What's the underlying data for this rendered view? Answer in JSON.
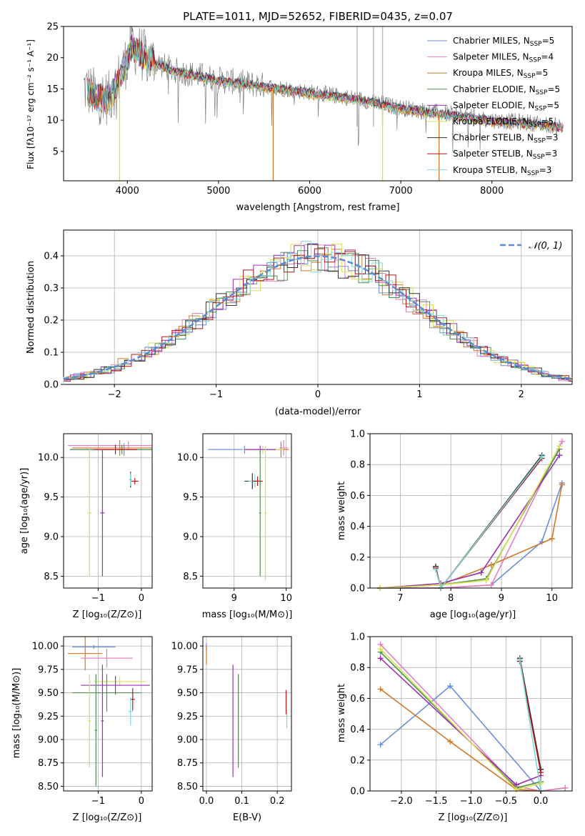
{
  "chart_data": [
    {
      "id": "spectrum",
      "type": "line",
      "title": "PLATE=1011, MJD=52652, FIBERID=0435, z=0.07",
      "xlabel": "wavelength [Angstrom, rest frame]",
      "ylabel": "Flux [fλ10⁻¹⁷ erg cm⁻² s⁻¹ A⁻¹]",
      "xlim": [
        3300,
        8880
      ],
      "ylim": [
        0.3,
        25
      ],
      "xticks": [
        4000,
        5000,
        6000,
        7000,
        8000
      ],
      "yticks": [
        5,
        10,
        15,
        20,
        25
      ],
      "legend_position": "upper-right",
      "legend": [
        {
          "label": "Chabrier MILES, N",
          "sub": "SSP",
          "tail": "=5",
          "color": "#6a8fd8"
        },
        {
          "label": "Salpeter MILES, N",
          "sub": "SSP",
          "tail": "=4",
          "color": "#e87fbf"
        },
        {
          "label": "Kroupa MILES, N",
          "sub": "SSP",
          "tail": "=5",
          "color": "#d4782a"
        },
        {
          "label": "Chabrier ELODIE, N",
          "sub": "SSP",
          "tail": "=5",
          "color": "#4f8f55"
        },
        {
          "label": "Salpeter ELODIE, N",
          "sub": "SSP",
          "tail": "=5",
          "color": "#9b30b0"
        },
        {
          "label": "Kroupa ELODIE, N",
          "sub": "SSP",
          "tail": "=5",
          "color": "#d8e050"
        },
        {
          "label": "Chabrier STELIB, N",
          "sub": "SSP",
          "tail": "=3",
          "color": "#333333"
        },
        {
          "label": "Salpeter STELIB, N",
          "sub": "SSP",
          "tail": "=3",
          "color": "#b01818"
        },
        {
          "label": "Kroupa STELIB, N",
          "sub": "SSP",
          "tail": "=3",
          "color": "#7fd8d8"
        }
      ],
      "continuum": {
        "x": [
          3500,
          3650,
          3800,
          3950,
          4050,
          4200,
          4500,
          5000,
          5500,
          6000,
          6500,
          7000,
          7500,
          8000,
          8500,
          8750
        ],
        "y": [
          15.5,
          14,
          13.5,
          18,
          22,
          20,
          18,
          16.5,
          15.5,
          14.5,
          13.5,
          12,
          11,
          10,
          9.5,
          9
        ]
      }
    },
    {
      "id": "residuals",
      "type": "step",
      "xlabel": "(data-model)/error",
      "ylabel": "Normed distribution",
      "xlim": [
        -2.5,
        2.5
      ],
      "ylim": [
        0,
        0.48
      ],
      "xticks": [
        -2,
        -1,
        0,
        1,
        2
      ],
      "yticks": [
        0.0,
        0.1,
        0.2,
        0.3,
        0.4
      ],
      "legend": {
        "label": "𝒩(0, 1)"
      },
      "reference_curve": "normal(0,1)"
    },
    {
      "id": "age_vs_Z",
      "type": "errorbar",
      "xlabel": "Z [log₁₀(Z/Z⊙)]",
      "ylabel": "age  [log₁₀(age/yr)]",
      "xlim": [
        -1.8,
        0.25
      ],
      "ylim": [
        8.35,
        10.3
      ],
      "xticks": [
        -1,
        0
      ],
      "yticks": [
        8.5,
        9.0,
        9.5,
        10.0
      ],
      "points": [
        {
          "x": -0.3,
          "y": 10.15,
          "xerr": 1.4,
          "yerr": 0.05,
          "color": "#e87fbf"
        },
        {
          "x": -0.5,
          "y": 10.12,
          "xerr": 1.1,
          "yerr": 0.1,
          "color": "#d4782a"
        },
        {
          "x": -0.4,
          "y": 10.1,
          "xerr": 1.25,
          "yerr": 0.08,
          "color": "#6a8fd8"
        },
        {
          "x": -0.45,
          "y": 10.1,
          "xerr": 1.2,
          "yerr": 0.06,
          "color": "#4f8f55"
        },
        {
          "x": -0.6,
          "y": 10.1,
          "xerr": 0.5,
          "yerr": 0.06,
          "color": "#b01818"
        },
        {
          "x": -1.2,
          "y": 9.3,
          "xerr": 0.05,
          "yerr": 0.8,
          "color": "#d8e050"
        },
        {
          "x": -0.9,
          "y": 9.3,
          "xerr": 0.05,
          "yerr": 0.8,
          "color": "#9b30b0"
        },
        {
          "x": -0.25,
          "y": 9.72,
          "xerr": 0.03,
          "yerr": 0.1,
          "color": "#333333"
        },
        {
          "x": -0.25,
          "y": 9.72,
          "xerr": 0.03,
          "yerr": 0.08,
          "color": "#7fd8d8"
        },
        {
          "x": -0.15,
          "y": 9.7,
          "xerr": 0.08,
          "yerr": 0.04,
          "color": "#b01818"
        }
      ]
    },
    {
      "id": "age_vs_mass",
      "type": "errorbar",
      "xlabel": "mass [log₁₀(M/M⊙)]",
      "xlim": [
        8.4,
        10.1
      ],
      "ylim": [
        8.35,
        10.3
      ],
      "xticks": [
        9,
        10
      ],
      "yticks": [
        8.5,
        9.0,
        9.5,
        10.0
      ],
      "points": [
        {
          "x": 9.95,
          "y": 10.12,
          "xerr": 0.08,
          "yerr": 0.1,
          "color": "#e87fbf"
        },
        {
          "x": 9.9,
          "y": 10.1,
          "xerr": 0.15,
          "yerr": 0.1,
          "color": "#d4782a"
        },
        {
          "x": 9.2,
          "y": 10.1,
          "xerr": 0.7,
          "yerr": 0.05,
          "color": "#6a8fd8"
        },
        {
          "x": 9.55,
          "y": 10.1,
          "xerr": 0.4,
          "yerr": 0.05,
          "color": "#d8e050"
        },
        {
          "x": 9.5,
          "y": 10.1,
          "xerr": 0.3,
          "yerr": 0.05,
          "color": "#9b30b0"
        },
        {
          "x": 9.6,
          "y": 9.3,
          "xerr": 0.02,
          "yerr": 0.85,
          "color": "#d8e050"
        },
        {
          "x": 9.5,
          "y": 9.3,
          "xerr": 0.02,
          "yerr": 0.8,
          "color": "#4f8f55"
        },
        {
          "x": 9.35,
          "y": 9.7,
          "xerr": 0.15,
          "yerr": 0.1,
          "color": "#333333"
        },
        {
          "x": 9.4,
          "y": 9.7,
          "xerr": 0.12,
          "yerr": 0.08,
          "color": "#7fd8d8"
        },
        {
          "x": 9.45,
          "y": 9.7,
          "xerr": 0.1,
          "yerr": 0.06,
          "color": "#b01818"
        }
      ]
    },
    {
      "id": "massweight_vs_age",
      "type": "line",
      "xlabel": "age  [log₁₀(age/yr)]",
      "ylabel": "mass weight",
      "xlim": [
        6.4,
        10.4
      ],
      "ylim": [
        0,
        1
      ],
      "xticks": [
        7,
        8,
        9,
        10
      ],
      "yticks": [
        0.0,
        0.2,
        0.4,
        0.6,
        0.8,
        1.0
      ],
      "series": [
        {
          "color": "#6a8fd8",
          "x": [
            6.6,
            7.8,
            8.8,
            9.8,
            10.2
          ],
          "y": [
            0.0,
            0.0,
            0.02,
            0.3,
            0.68
          ]
        },
        {
          "color": "#e87fbf",
          "x": [
            6.6,
            7.8,
            8.8,
            10.2
          ],
          "y": [
            0.0,
            0.0,
            0.02,
            0.95
          ]
        },
        {
          "color": "#d4782a",
          "x": [
            6.6,
            7.8,
            8.8,
            10.0,
            10.2
          ],
          "y": [
            0.0,
            0.02,
            0.15,
            0.32,
            0.67
          ]
        },
        {
          "color": "#4f8f55",
          "x": [
            6.6,
            7.8,
            8.7,
            10.15
          ],
          "y": [
            0.0,
            0.02,
            0.06,
            0.9
          ]
        },
        {
          "color": "#9b30b0",
          "x": [
            6.6,
            7.8,
            8.6,
            10.15
          ],
          "y": [
            0.0,
            0.03,
            0.1,
            0.86
          ]
        },
        {
          "color": "#d8e050",
          "x": [
            6.6,
            7.8,
            8.7,
            10.15
          ],
          "y": [
            0.0,
            0.02,
            0.05,
            0.92
          ]
        },
        {
          "color": "#333333",
          "x": [
            7.7,
            7.8,
            9.8
          ],
          "y": [
            0.14,
            0.0,
            0.86
          ]
        },
        {
          "color": "#b01818",
          "x": [
            7.7,
            7.8,
            9.8
          ],
          "y": [
            0.13,
            0.0,
            0.84
          ]
        },
        {
          "color": "#7fd8d8",
          "x": [
            7.7,
            7.8,
            9.8
          ],
          "y": [
            0.12,
            0.0,
            0.85
          ]
        }
      ]
    },
    {
      "id": "mass_vs_Z",
      "type": "errorbar",
      "xlabel": "Z [log₁₀(Z/Z⊙)]",
      "ylabel": "mass [log₁₀(M/M⊙)]",
      "xlim": [
        -1.8,
        0.25
      ],
      "ylim": [
        8.45,
        10.1
      ],
      "xticks": [
        -1,
        0
      ],
      "yticks": [
        8.5,
        8.75,
        9.0,
        9.25,
        9.5,
        9.75,
        10.0
      ],
      "points": [
        {
          "x": -1.1,
          "y": 9.99,
          "xerr": 0.5,
          "yerr": 0.02,
          "color": "#6a8fd8"
        },
        {
          "x": -1.3,
          "y": 9.92,
          "xerr": 0.4,
          "yerr": 0.18,
          "color": "#d4782a"
        },
        {
          "x": -0.8,
          "y": 9.87,
          "xerr": 0.6,
          "yerr": 0.1,
          "color": "#e87fbf"
        },
        {
          "x": -0.5,
          "y": 9.62,
          "xerr": 0.6,
          "yerr": 0.05,
          "color": "#d8e050"
        },
        {
          "x": -0.6,
          "y": 9.58,
          "xerr": 0.8,
          "yerr": 0.1,
          "color": "#9b30b0"
        },
        {
          "x": -0.8,
          "y": 9.5,
          "xerr": 0.8,
          "yerr": 0.2,
          "color": "#4f8f55"
        },
        {
          "x": -1.2,
          "y": 9.2,
          "xerr": 0.03,
          "yerr": 0.5,
          "color": "#d8e050"
        },
        {
          "x": -0.9,
          "y": 9.2,
          "xerr": 0.03,
          "yerr": 0.6,
          "color": "#9b30b0"
        },
        {
          "x": -1.05,
          "y": 9.1,
          "xerr": 0.03,
          "yerr": 0.6,
          "color": "#4f8f55"
        },
        {
          "x": -0.2,
          "y": 9.43,
          "xerr": 0.05,
          "yerr": 0.12,
          "color": "#b01818"
        },
        {
          "x": -0.25,
          "y": 9.3,
          "xerr": 0.05,
          "yerr": 0.15,
          "color": "#7fd8d8"
        }
      ]
    },
    {
      "id": "mass_vs_EBV",
      "type": "errorbar",
      "xlabel": "E(B-V)",
      "xlim": [
        -0.01,
        0.24
      ],
      "ylim": [
        8.45,
        10.1
      ],
      "xticks": [
        0.0,
        0.1,
        0.2
      ],
      "yticks": [
        8.5,
        8.75,
        9.0,
        9.25,
        9.5,
        9.75,
        10.0
      ],
      "points": [
        {
          "x": 0.0,
          "y": 9.99,
          "xerr": 0.0,
          "yerr": 0.04,
          "color": "#6a8fd8"
        },
        {
          "x": 0.0,
          "y": 9.9,
          "xerr": 0.0,
          "yerr": 0.1,
          "color": "#d4782a"
        },
        {
          "x": 0.075,
          "y": 9.2,
          "xerr": 0.0,
          "yerr": 0.6,
          "color": "#9b30b0"
        },
        {
          "x": 0.09,
          "y": 9.25,
          "xerr": 0.0,
          "yerr": 0.45,
          "color": "#d8e050"
        },
        {
          "x": 0.09,
          "y": 9.2,
          "xerr": 0.0,
          "yerr": 0.5,
          "color": "#4f8f55"
        },
        {
          "x": 0.225,
          "y": 9.4,
          "xerr": 0.0,
          "yerr": 0.13,
          "color": "#b01818"
        },
        {
          "x": 0.227,
          "y": 9.22,
          "xerr": 0.0,
          "yerr": 0.1,
          "color": "#7fd8d8"
        }
      ]
    },
    {
      "id": "massweight_vs_Z",
      "type": "line",
      "xlabel": "Z [log₁₀(Z/Z⊙)]",
      "ylabel": "mass weight",
      "xlim": [
        -2.45,
        0.45
      ],
      "ylim": [
        0,
        1
      ],
      "xticks": [
        -2.0,
        -1.5,
        -1.0,
        -0.5,
        0.0
      ],
      "yticks": [
        0.0,
        0.2,
        0.4,
        0.6,
        0.8,
        1.0
      ],
      "series": [
        {
          "color": "#6a8fd8",
          "x": [
            -2.3,
            -1.3,
            0.0,
            0.35
          ],
          "y": [
            0.3,
            0.68,
            0.0,
            0.02
          ]
        },
        {
          "color": "#e87fbf",
          "x": [
            -2.3,
            -0.35,
            0.0,
            0.35
          ],
          "y": [
            0.95,
            0.03,
            0.0,
            0.02
          ]
        },
        {
          "color": "#d4782a",
          "x": [
            -2.3,
            -1.3,
            -0.35,
            0.0
          ],
          "y": [
            0.66,
            0.32,
            0.01,
            0.0
          ]
        },
        {
          "color": "#4f8f55",
          "x": [
            -2.3,
            -0.35,
            0.0
          ],
          "y": [
            0.9,
            0.02,
            0.06
          ]
        },
        {
          "color": "#9b30b0",
          "x": [
            -2.3,
            -0.35,
            0.0
          ],
          "y": [
            0.86,
            0.04,
            0.1
          ]
        },
        {
          "color": "#d8e050",
          "x": [
            -2.3,
            -0.35,
            0.0
          ],
          "y": [
            0.92,
            0.01,
            0.05
          ]
        },
        {
          "color": "#333333",
          "x": [
            -0.3,
            0.0
          ],
          "y": [
            0.86,
            0.14
          ]
        },
        {
          "color": "#b01818",
          "x": [
            -0.3,
            0.0
          ],
          "y": [
            0.84,
            0.12
          ]
        },
        {
          "color": "#7fd8d8",
          "x": [
            -0.3,
            0.0
          ],
          "y": [
            0.85,
            0.0
          ]
        }
      ]
    }
  ]
}
